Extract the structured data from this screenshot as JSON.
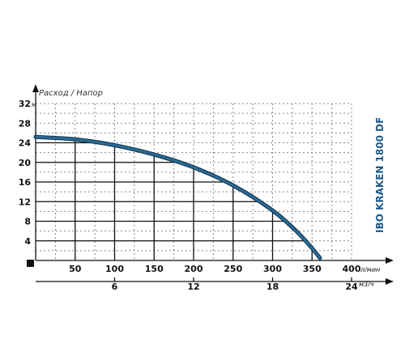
{
  "chart_data": {
    "type": "line",
    "title": "IBO KRAKEN 1800 DF",
    "ylabel": "Расход / Напор",
    "y_unit": "м",
    "x_unit": "л/мин",
    "x2_unit": "м3/ч",
    "ylim": [
      0,
      32
    ],
    "xlim": [
      0,
      400
    ],
    "x2lim": [
      0,
      24
    ],
    "grid": true,
    "y_ticks": [
      "4",
      "8",
      "12",
      "16",
      "20",
      "24",
      "28",
      "32"
    ],
    "x_ticks": [
      "50",
      "100",
      "150",
      "200",
      "250",
      "300",
      "350",
      "400"
    ],
    "x2_ticks": [
      "6",
      "12",
      "18",
      "24"
    ],
    "series": [
      {
        "color": "#2a6a96",
        "x": [
          0,
          50,
          100,
          150,
          200,
          250,
          300,
          330,
          350,
          360
        ],
        "y": [
          25.2,
          24.7,
          23.5,
          21.6,
          19.0,
          15.3,
          10.2,
          6.0,
          2.5,
          0.5
        ]
      }
    ]
  }
}
